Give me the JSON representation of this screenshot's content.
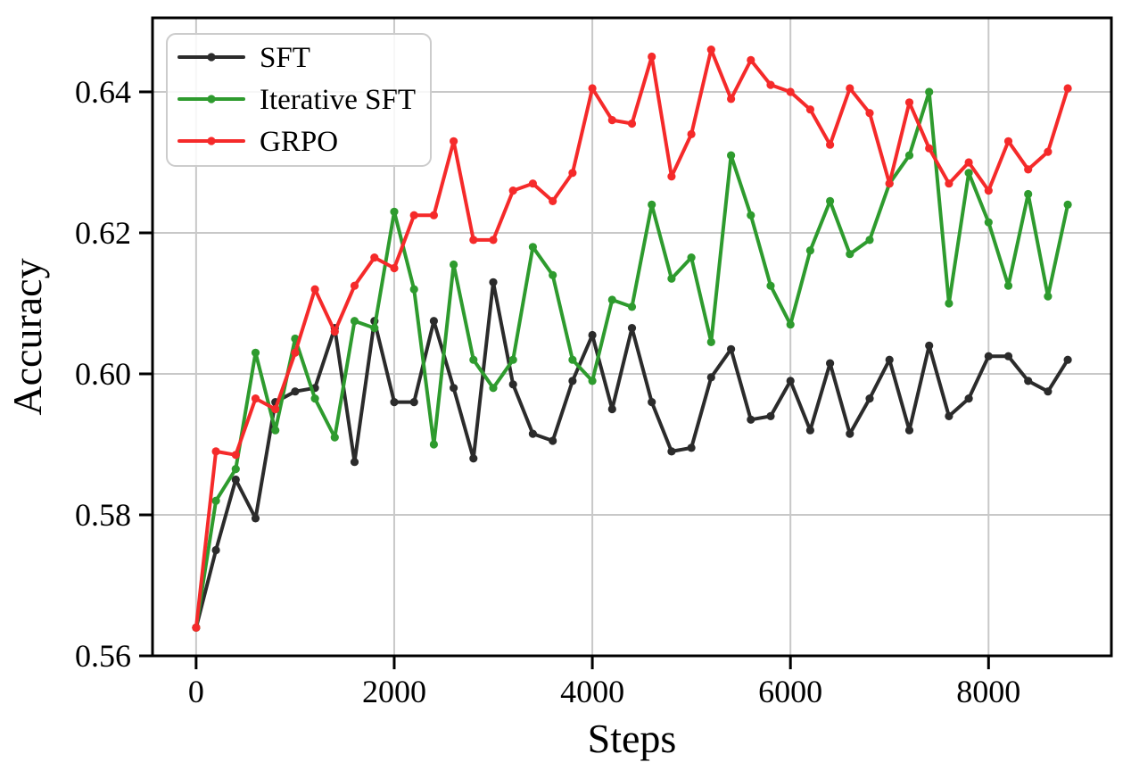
{
  "figure": {
    "background": "#ffffff",
    "text_color": "#000000",
    "grid_color": "#c8c8c8",
    "spine_color": "#000000",
    "legend_border_color": "#cccccc",
    "legend_background": "rgba(255,255,255,0.85)"
  },
  "chart_data": {
    "type": "line",
    "title": "",
    "xlabel": "Steps",
    "ylabel": "Accuracy",
    "xlim": [
      -440,
      9240
    ],
    "ylim": [
      0.56,
      0.6505
    ],
    "xticks": [
      0,
      2000,
      4000,
      6000,
      8000
    ],
    "xtick_labels": [
      "0",
      "2000",
      "4000",
      "6000",
      "8000"
    ],
    "yticks": [
      0.56,
      0.58,
      0.6,
      0.62,
      0.64
    ],
    "ytick_labels": [
      "0.56",
      "0.58",
      "0.60",
      "0.62",
      "0.64"
    ],
    "grid": true,
    "legend_position": "upper-left",
    "x": [
      0,
      200,
      400,
      600,
      800,
      1000,
      1200,
      1400,
      1600,
      1800,
      2000,
      2200,
      2400,
      2600,
      2800,
      3000,
      3200,
      3400,
      3600,
      3800,
      4000,
      4200,
      4400,
      4600,
      4800,
      5000,
      5200,
      5400,
      5600,
      5800,
      6000,
      6200,
      6400,
      6600,
      6800,
      7000,
      7200,
      7400,
      7600,
      7800,
      8000,
      8200,
      8400,
      8600,
      8800
    ],
    "series": [
      {
        "name": "SFT",
        "color": "#2b2b2b",
        "values": [
          0.564,
          0.575,
          0.585,
          0.5795,
          0.596,
          0.5975,
          0.598,
          0.6065,
          0.5875,
          0.6075,
          0.596,
          0.596,
          0.6075,
          0.598,
          0.588,
          0.613,
          0.5985,
          0.5915,
          0.5905,
          0.599,
          0.6055,
          0.595,
          0.6065,
          0.596,
          0.589,
          0.5895,
          0.5995,
          0.6035,
          0.5935,
          0.594,
          0.599,
          0.592,
          0.6015,
          0.5915,
          0.5965,
          0.602,
          0.592,
          0.604,
          0.594,
          0.5965,
          0.6025,
          0.6025,
          0.599,
          0.5975,
          0.602
        ]
      },
      {
        "name": "Iterative SFT",
        "color": "#2e9b2e",
        "values": [
          0.564,
          0.582,
          0.5865,
          0.603,
          0.592,
          0.605,
          0.5965,
          0.591,
          0.6075,
          0.6065,
          0.623,
          0.612,
          0.59,
          0.6155,
          0.602,
          0.598,
          0.602,
          0.618,
          0.614,
          0.602,
          0.599,
          0.6105,
          0.6095,
          0.624,
          0.6135,
          0.6165,
          0.6045,
          0.631,
          0.6225,
          0.6125,
          0.607,
          0.6175,
          0.6245,
          0.617,
          0.619,
          0.627,
          0.631,
          0.64,
          0.61,
          0.6285,
          0.6215,
          0.6125,
          0.6255,
          0.611,
          0.624
        ]
      },
      {
        "name": "GRPO",
        "color": "#f52a2a",
        "values": [
          0.564,
          0.589,
          0.5885,
          0.5965,
          0.595,
          0.603,
          0.612,
          0.606,
          0.6125,
          0.6165,
          0.615,
          0.6225,
          0.6225,
          0.633,
          0.619,
          0.619,
          0.626,
          0.627,
          0.6245,
          0.6285,
          0.6405,
          0.636,
          0.6355,
          0.645,
          0.628,
          0.634,
          0.646,
          0.639,
          0.6445,
          0.641,
          0.64,
          0.6375,
          0.6325,
          0.6405,
          0.637,
          0.627,
          0.6385,
          0.632,
          0.627,
          0.63,
          0.626,
          0.633,
          0.629,
          0.6315,
          0.6405
        ]
      }
    ]
  }
}
